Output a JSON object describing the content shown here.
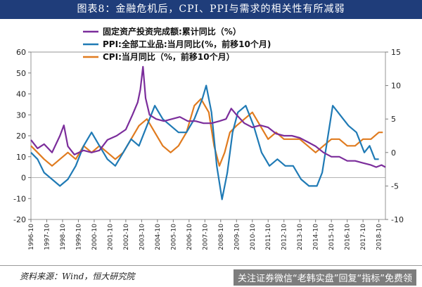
{
  "title": "图表8：金融危机后，CPI、PPI与需求的相关性有所减弱",
  "source": "资料来源：Wind，恒大研究院",
  "promo": "关注证券微信“老韩实盘”回复“指标”免费领",
  "colors": {
    "title_bg": "#1f3d7a",
    "investment": "#7b2d9b",
    "ppi": "#1f7ab5",
    "cpi": "#e07b1f"
  },
  "chart_data": {
    "type": "line",
    "x_start": "1996-10",
    "x_end": "2019-03",
    "x_tick_labels": [
      "1996-10",
      "1997-10",
      "1998-10",
      "1999-10",
      "2000-10",
      "2001-10",
      "2002-10",
      "2003-10",
      "2004-10",
      "2005-10",
      "2006-10",
      "2007-10",
      "2008-10",
      "2009-10",
      "2010-10",
      "2011-10",
      "2012-10",
      "2013-10",
      "2014-10",
      "2015-10",
      "2016-10",
      "2017-10",
      "2018-10"
    ],
    "y_left": {
      "min": -20,
      "max": 60,
      "ticks": [
        -20,
        -10,
        0,
        10,
        20,
        30,
        40,
        50,
        60
      ]
    },
    "y_right": {
      "min": -10,
      "max": 15,
      "ticks": [
        -10,
        -5,
        0,
        5,
        10,
        15
      ]
    },
    "grid": false,
    "legend_position": "top",
    "series": [
      {
        "name": "固定资产投资完成额:累计同比（%）",
        "axis": "left",
        "color": "#7b2d9b",
        "points": [
          [
            "1996-10",
            18
          ],
          [
            "1997-03",
            14
          ],
          [
            "1997-08",
            16
          ],
          [
            "1998-02",
            12
          ],
          [
            "1998-08",
            20
          ],
          [
            "1998-11",
            25
          ],
          [
            "1999-02",
            15
          ],
          [
            "1999-07",
            11
          ],
          [
            "2000-02",
            13
          ],
          [
            "2000-08",
            12
          ],
          [
            "2001-02",
            13
          ],
          [
            "2001-08",
            18
          ],
          [
            "2002-03",
            20
          ],
          [
            "2002-10",
            23
          ],
          [
            "2003-03",
            30
          ],
          [
            "2003-07",
            36
          ],
          [
            "2003-09",
            42
          ],
          [
            "2003-11",
            53
          ],
          [
            "2004-01",
            38
          ],
          [
            "2004-04",
            30
          ],
          [
            "2004-09",
            28
          ],
          [
            "2005-03",
            27
          ],
          [
            "2005-09",
            28
          ],
          [
            "2006-03",
            29
          ],
          [
            "2006-09",
            27
          ],
          [
            "2007-03",
            27
          ],
          [
            "2007-09",
            26
          ],
          [
            "2008-03",
            26
          ],
          [
            "2008-09",
            27
          ],
          [
            "2009-02",
            28
          ],
          [
            "2009-06",
            33
          ],
          [
            "2009-10",
            30
          ],
          [
            "2010-04",
            26
          ],
          [
            "2010-10",
            24
          ],
          [
            "2011-04",
            25
          ],
          [
            "2011-10",
            24
          ],
          [
            "2012-04",
            21
          ],
          [
            "2012-10",
            20
          ],
          [
            "2013-04",
            20
          ],
          [
            "2013-10",
            19
          ],
          [
            "2014-04",
            17
          ],
          [
            "2014-10",
            15
          ],
          [
            "2015-04",
            12
          ],
          [
            "2015-10",
            10
          ],
          [
            "2016-04",
            10
          ],
          [
            "2016-10",
            8
          ],
          [
            "2017-04",
            8
          ],
          [
            "2017-10",
            7
          ],
          [
            "2018-04",
            6
          ],
          [
            "2018-08",
            5
          ],
          [
            "2018-12",
            6
          ],
          [
            "2019-03",
            5
          ]
        ]
      },
      {
        "name": "PPI:全部工业品:当月同比(%，前移10个月)",
        "axis": "right",
        "color": "#1f7ab5",
        "points": [
          [
            "1996-10",
            0
          ],
          [
            "1997-03",
            -1
          ],
          [
            "1997-08",
            -3
          ],
          [
            "1998-02",
            -4
          ],
          [
            "1998-08",
            -5
          ],
          [
            "1999-02",
            -4
          ],
          [
            "1999-08",
            -2
          ],
          [
            "2000-02",
            1
          ],
          [
            "2000-08",
            3
          ],
          [
            "2001-02",
            1
          ],
          [
            "2001-08",
            -1
          ],
          [
            "2002-02",
            -2
          ],
          [
            "2002-08",
            0
          ],
          [
            "2003-02",
            2
          ],
          [
            "2003-08",
            1
          ],
          [
            "2004-02",
            4
          ],
          [
            "2004-08",
            7
          ],
          [
            "2005-02",
            5
          ],
          [
            "2005-08",
            4
          ],
          [
            "2006-02",
            3
          ],
          [
            "2006-08",
            3
          ],
          [
            "2007-02",
            5
          ],
          [
            "2007-08",
            8
          ],
          [
            "2007-11",
            10
          ],
          [
            "2008-03",
            6
          ],
          [
            "2008-07",
            -2
          ],
          [
            "2008-11",
            -7
          ],
          [
            "2009-03",
            -3
          ],
          [
            "2009-07",
            3
          ],
          [
            "2009-11",
            6
          ],
          [
            "2010-05",
            7
          ],
          [
            "2010-11",
            4
          ],
          [
            "2011-05",
            0
          ],
          [
            "2011-11",
            -2
          ],
          [
            "2012-05",
            -1
          ],
          [
            "2012-11",
            -2
          ],
          [
            "2013-05",
            -2
          ],
          [
            "2013-11",
            -4
          ],
          [
            "2014-05",
            -5
          ],
          [
            "2014-11",
            -5
          ],
          [
            "2015-03",
            -3
          ],
          [
            "2015-07",
            2
          ],
          [
            "2015-11",
            7
          ],
          [
            "2016-03",
            6
          ],
          [
            "2016-07",
            5
          ],
          [
            "2016-11",
            4
          ],
          [
            "2017-05",
            3
          ],
          [
            "2017-11",
            0
          ],
          [
            "2018-03",
            1
          ],
          [
            "2018-07",
            -1
          ],
          [
            "2018-10",
            -1
          ]
        ]
      },
      {
        "name": "CPI:当月同比（%，前移10个月）",
        "axis": "right",
        "color": "#e07b1f",
        "points": [
          [
            "1996-10",
            1
          ],
          [
            "1997-03",
            0
          ],
          [
            "1997-08",
            -1
          ],
          [
            "1998-02",
            -2
          ],
          [
            "1998-08",
            -1
          ],
          [
            "1999-02",
            0
          ],
          [
            "1999-08",
            -1
          ],
          [
            "2000-02",
            1
          ],
          [
            "2000-08",
            0
          ],
          [
            "2001-02",
            1
          ],
          [
            "2001-08",
            0
          ],
          [
            "2002-02",
            -1
          ],
          [
            "2002-08",
            0
          ],
          [
            "2003-02",
            2
          ],
          [
            "2003-08",
            4
          ],
          [
            "2004-02",
            5
          ],
          [
            "2004-08",
            3
          ],
          [
            "2005-02",
            1
          ],
          [
            "2005-08",
            0
          ],
          [
            "2006-02",
            1
          ],
          [
            "2006-08",
            3
          ],
          [
            "2007-02",
            7
          ],
          [
            "2007-07",
            8
          ],
          [
            "2008-01",
            6
          ],
          [
            "2008-05",
            1
          ],
          [
            "2008-09",
            -2
          ],
          [
            "2009-01",
            0
          ],
          [
            "2009-05",
            3
          ],
          [
            "2009-10",
            4
          ],
          [
            "2010-04",
            5
          ],
          [
            "2010-10",
            6
          ],
          [
            "2011-04",
            4
          ],
          [
            "2011-10",
            2
          ],
          [
            "2012-04",
            3
          ],
          [
            "2012-10",
            2
          ],
          [
            "2013-04",
            2
          ],
          [
            "2013-10",
            2
          ],
          [
            "2014-04",
            1
          ],
          [
            "2014-10",
            0
          ],
          [
            "2015-04",
            1
          ],
          [
            "2015-10",
            2
          ],
          [
            "2016-04",
            2
          ],
          [
            "2016-10",
            1
          ],
          [
            "2017-04",
            1
          ],
          [
            "2017-10",
            2
          ],
          [
            "2018-04",
            2
          ],
          [
            "2018-10",
            3
          ],
          [
            "2019-01",
            3
          ]
        ]
      }
    ]
  }
}
